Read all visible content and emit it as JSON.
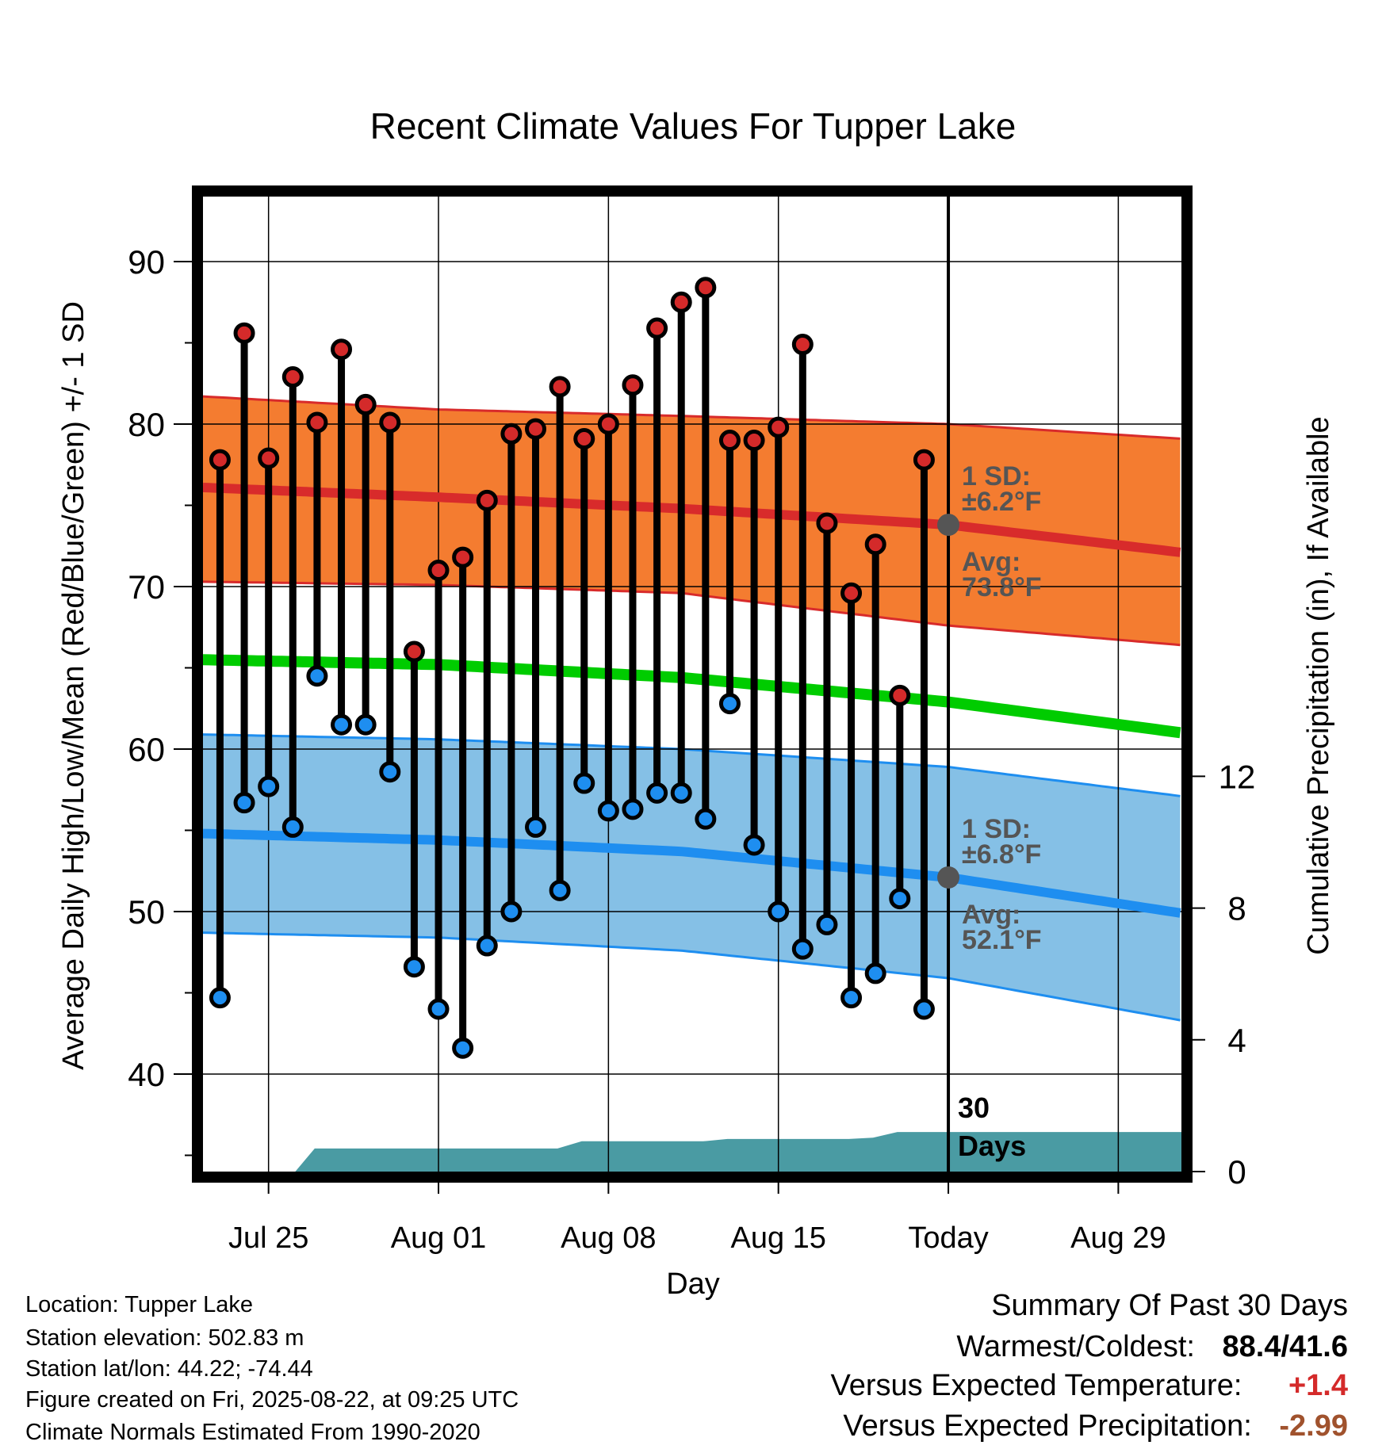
{
  "chart_data": {
    "type": "line",
    "title": "Recent Climate Values For Tupper Lake",
    "xlabel": "Day",
    "ylabel": "Average Daily High/Low/Mean (Red/Blue/Green) +/- 1 SD",
    "y2label": "Cumulative Precipitation (in), If Available",
    "ylim": [
      34,
      94
    ],
    "y2lim": [
      0,
      29.6
    ],
    "yticks": [
      40,
      50,
      60,
      70,
      80,
      90
    ],
    "y2ticks": [
      0,
      4,
      8,
      12
    ],
    "x_tick_labels": [
      {
        "day": 3,
        "label": "Jul 25"
      },
      {
        "day": 10,
        "label": "Aug 01"
      },
      {
        "day": 17,
        "label": "Aug 08"
      },
      {
        "day": 24,
        "label": "Aug 15"
      },
      {
        "day": 31,
        "label": "Today"
      },
      {
        "day": 38,
        "label": "Aug 29"
      }
    ],
    "xlim": [
      0.3,
      40.6
    ],
    "grid": true,
    "today_day": 31,
    "today_label": "30\nDays",
    "daily_highs": [
      77.8,
      85.6,
      77.9,
      82.9,
      80.1,
      84.6,
      81.2,
      80.1,
      66.0,
      71.0,
      71.8,
      75.3,
      79.4,
      79.7,
      82.3,
      79.1,
      80.0,
      82.4,
      85.9,
      87.5,
      88.4,
      79.0,
      79.0,
      79.8,
      84.9,
      73.9,
      69.6,
      72.6,
      63.3,
      77.8
    ],
    "daily_lows": [
      44.7,
      56.7,
      57.7,
      55.2,
      64.5,
      61.5,
      61.5,
      58.6,
      46.6,
      44.0,
      41.6,
      47.9,
      50.0,
      55.2,
      51.3,
      57.9,
      56.2,
      56.3,
      57.3,
      57.3,
      55.7,
      62.8,
      54.1,
      50.0,
      47.7,
      49.2,
      44.7,
      46.2,
      50.8,
      44.0
    ],
    "first_day": 1,
    "normal_high": {
      "days": [
        0.3,
        10,
        20,
        31,
        40.6
      ],
      "values": [
        76.1,
        75.5,
        74.8,
        73.8,
        72.1
      ]
    },
    "normal_high_sd": {
      "days": [
        0.3,
        10,
        20,
        31,
        40.6
      ],
      "upper": [
        81.7,
        80.9,
        80.5,
        80.0,
        79.1
      ],
      "lower": [
        70.3,
        70.1,
        69.6,
        67.6,
        66.4
      ]
    },
    "normal_mean": {
      "days": [
        0.3,
        10,
        20,
        31,
        40.6
      ],
      "values": [
        65.5,
        65.2,
        64.4,
        62.9,
        61.0
      ]
    },
    "normal_low": {
      "days": [
        0.3,
        10,
        20,
        31,
        40.6
      ],
      "values": [
        54.8,
        54.4,
        53.7,
        52.1,
        49.9
      ]
    },
    "normal_low_sd": {
      "days": [
        0.3,
        10,
        20,
        31,
        40.6
      ],
      "upper": [
        60.9,
        60.6,
        60.0,
        58.9,
        57.1
      ],
      "lower": [
        48.7,
        48.4,
        47.6,
        45.9,
        43.3
      ]
    },
    "precip_cumulative": {
      "days": [
        0.3,
        4.1,
        4.9,
        14.9,
        15.9,
        20.9,
        21.9,
        26.9,
        27.9,
        28.9,
        29.9,
        31,
        40.6
      ],
      "values": [
        0,
        0,
        0.7,
        0.7,
        0.92,
        0.92,
        0.99,
        0.99,
        1.03,
        1.2,
        1.2,
        1.2,
        1.2
      ]
    },
    "annotations": [
      {
        "day": 31,
        "y": 73.8,
        "lines": [
          "1 SD:",
          "±6.2°F",
          "Avg:",
          "73.8°F"
        ]
      },
      {
        "day": 31,
        "y": 52.1,
        "lines": [
          "1 SD:",
          "±6.8°F",
          "Avg:",
          "52.1°F"
        ]
      }
    ],
    "colors": {
      "high_band": "#f47c30",
      "high_edge": "#d82b2b",
      "high_avg": "#d82b2b",
      "mean": "#00cc00",
      "low_band": "#85c0e6",
      "low_edge": "#1e8ef0",
      "low_avg": "#1e8ef0",
      "precip": "#4a9ba3",
      "high_dot": "#d42a2a",
      "low_dot": "#1e8ef0",
      "annot": "#555555",
      "today_dot": "#555555"
    }
  },
  "info": {
    "location": "Location: Tupper Lake",
    "elevation": "Station elevation: 502.83 m",
    "latlon": "Station lat/lon: 44.22; -74.44",
    "created": "Figure created on Fri, 2025-08-22, at 09:25 UTC",
    "normals": "Climate Normals Estimated From 1990-2020"
  },
  "summary": {
    "heading": "Summary Of Past 30 Days",
    "warm_cold_label": "Warmest/Coldest:",
    "warm_cold_value": "88.4/41.6",
    "temp_label": "Versus Expected Temperature:",
    "temp_value": "+1.4",
    "temp_color": "#d42a2a",
    "precip_label": "Versus Expected Precipitation:",
    "precip_value": "-2.99",
    "precip_color": "#a0522d"
  }
}
